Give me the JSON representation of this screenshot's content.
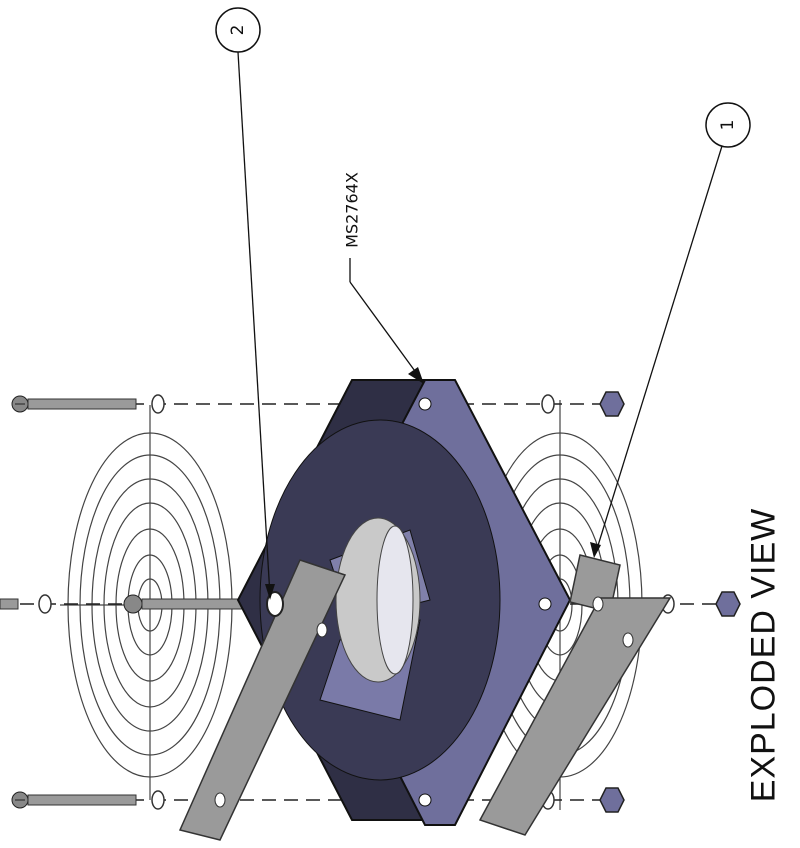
{
  "drawing": {
    "title": "EXPLODED VIEW",
    "part_label": "MS2764X",
    "callouts": [
      {
        "number": "1",
        "target": "mounting bracket"
      },
      {
        "number": "2",
        "target": "washer"
      }
    ]
  },
  "colors": {
    "fan_frame": "#2f2f45",
    "fan_frame_light": "#6f6f9c",
    "bracket": "#9a9a9a",
    "hub": "#c9c9c9",
    "line": "#111111"
  }
}
